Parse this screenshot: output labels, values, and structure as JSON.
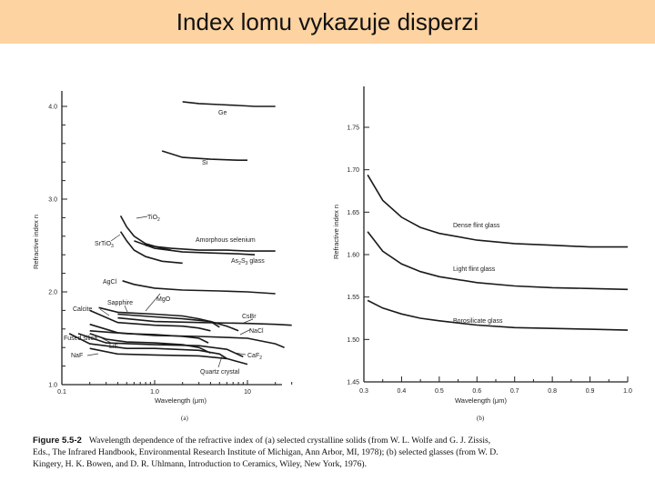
{
  "title": "Index lomu vykazuje disperzi",
  "chart_data": [
    {
      "panel_label": "(a)",
      "type": "line",
      "xlabel": "Wavelength (μm)",
      "ylabel": "Refractive index n",
      "xscale": "log",
      "xlim": [
        0.1,
        30
      ],
      "ylim": [
        1.0,
        4.0
      ],
      "xticks": [
        "0.1",
        "1.0",
        "10"
      ],
      "yticks": [
        "1.0",
        "2.0",
        "3.0",
        "4.0"
      ],
      "series": [
        {
          "name": "Ge",
          "x": [
            2,
            3,
            5,
            8,
            12,
            20
          ],
          "y": [
            4.05,
            4.03,
            4.02,
            4.01,
            4.0,
            4.0
          ]
        },
        {
          "name": "Si",
          "x": [
            1.2,
            2,
            4,
            8,
            10
          ],
          "y": [
            3.52,
            3.45,
            3.43,
            3.42,
            3.42
          ]
        },
        {
          "name": "TiO2",
          "x": [
            0.43,
            0.5,
            0.6,
            0.8,
            1.2,
            1.5
          ],
          "y": [
            2.82,
            2.7,
            2.6,
            2.52,
            2.47,
            2.45
          ]
        },
        {
          "name": "SrTiO3",
          "x": [
            0.43,
            0.5,
            0.6,
            0.8,
            1.2,
            2
          ],
          "y": [
            2.65,
            2.55,
            2.45,
            2.38,
            2.33,
            2.31
          ]
        },
        {
          "name": "Amorphous selenium",
          "x": [
            0.8,
            1.5,
            3,
            6,
            10,
            20
          ],
          "y": [
            2.5,
            2.47,
            2.45,
            2.45,
            2.44,
            2.44
          ]
        },
        {
          "name": "As2S3 glass",
          "x": [
            0.6,
            1,
            2,
            4,
            8,
            12
          ],
          "y": [
            2.55,
            2.47,
            2.43,
            2.42,
            2.41,
            2.4
          ]
        },
        {
          "name": "AgCl",
          "x": [
            0.45,
            0.6,
            1,
            2,
            5,
            10,
            20
          ],
          "y": [
            2.12,
            2.08,
            2.04,
            2.02,
            2.01,
            2.0,
            1.98
          ]
        },
        {
          "name": "Sapphire",
          "x": [
            0.25,
            0.4,
            1,
            2,
            3,
            4,
            5
          ],
          "y": [
            1.83,
            1.78,
            1.76,
            1.74,
            1.71,
            1.68,
            1.62
          ]
        },
        {
          "name": "MgO",
          "x": [
            0.4,
            1,
            2,
            4,
            6,
            8
          ],
          "y": [
            1.76,
            1.73,
            1.71,
            1.68,
            1.63,
            1.58
          ]
        },
        {
          "name": "CsBr",
          "x": [
            0.4,
            1,
            3,
            10,
            20,
            30
          ],
          "y": [
            1.72,
            1.68,
            1.67,
            1.66,
            1.65,
            1.64
          ]
        },
        {
          "name": "Calcite",
          "x": [
            0.2,
            0.4,
            1,
            2,
            3,
            4
          ],
          "y": [
            1.8,
            1.67,
            1.64,
            1.63,
            1.61,
            1.58
          ]
        },
        {
          "name": "NaCl",
          "x": [
            0.2,
            0.4,
            1,
            3,
            10,
            20,
            25
          ],
          "y": [
            1.65,
            1.56,
            1.53,
            1.52,
            1.5,
            1.44,
            1.4
          ]
        },
        {
          "name": "Fused silica",
          "x": [
            0.2,
            0.3,
            0.5,
            1,
            2,
            3,
            4
          ],
          "y": [
            1.55,
            1.49,
            1.46,
            1.45,
            1.43,
            1.4,
            1.34
          ]
        },
        {
          "name": "LiF",
          "x": [
            0.12,
            0.2,
            0.5,
            1,
            3,
            5,
            6
          ],
          "y": [
            1.55,
            1.44,
            1.39,
            1.39,
            1.37,
            1.33,
            1.28
          ]
        },
        {
          "name": "CaF2",
          "x": [
            0.15,
            0.3,
            1,
            3,
            6,
            9
          ],
          "y": [
            1.55,
            1.45,
            1.43,
            1.42,
            1.38,
            1.3
          ]
        },
        {
          "name": "NaF",
          "x": [
            0.2,
            0.4,
            1,
            3,
            6,
            10
          ],
          "y": [
            1.39,
            1.33,
            1.32,
            1.31,
            1.28,
            1.22
          ]
        },
        {
          "name": "Quartz crystal",
          "x": [
            0.2,
            0.5,
            1,
            2,
            3,
            3.8
          ],
          "y": [
            1.58,
            1.55,
            1.54,
            1.52,
            1.5,
            1.45
          ]
        }
      ],
      "labels": {
        "ge": "Ge",
        "si": "Si",
        "tio2": "TiO",
        "tio2_sub": "2",
        "srtio3": "SrTiO",
        "srtio3_sub": "3",
        "se": "Amorphous selenium",
        "as2s3_a": "As",
        "as2s3_sub1": "2",
        "as2s3_b": "S",
        "as2s3_sub2": "3",
        "as2s3_c": " glass",
        "agcl": "AgCl",
        "sapphire": "Sapphire",
        "mgo": "MgO",
        "calcite": "Calcite",
        "csbr": "CsBr",
        "nacl": "NaCl",
        "fused": "Fused silica",
        "lif": "LiF",
        "naf": "NaF",
        "caf2": "CaF",
        "caf2_sub": "2",
        "quartz": "Quartz crystal"
      }
    },
    {
      "panel_label": "(b)",
      "type": "line",
      "xlabel": "Wavelength (μm)",
      "ylabel": "Refractive index n",
      "xlim": [
        0.3,
        1.0
      ],
      "ylim": [
        1.45,
        1.8
      ],
      "xticks": [
        "0.3",
        "0.4",
        "0.5",
        "0.6",
        "0.7",
        "0.8",
        "0.9",
        "1.0"
      ],
      "yticks": [
        "1.45",
        "1.50",
        "1.55",
        "1.60",
        "1.65",
        "1.70",
        "1.75"
      ],
      "series": [
        {
          "name": "Dense flint glass",
          "x": [
            0.31,
            0.35,
            0.4,
            0.45,
            0.5,
            0.6,
            0.7,
            0.8,
            0.9,
            1.0
          ],
          "y": [
            1.694,
            1.664,
            1.644,
            1.632,
            1.625,
            1.617,
            1.613,
            1.611,
            1.609,
            1.609
          ]
        },
        {
          "name": "Light flint glass",
          "x": [
            0.31,
            0.35,
            0.4,
            0.45,
            0.5,
            0.6,
            0.7,
            0.8,
            0.9,
            1.0
          ],
          "y": [
            1.627,
            1.604,
            1.589,
            1.58,
            1.574,
            1.567,
            1.563,
            1.561,
            1.56,
            1.559
          ]
        },
        {
          "name": "Borosilicate glass",
          "x": [
            0.31,
            0.35,
            0.4,
            0.45,
            0.5,
            0.6,
            0.7,
            0.8,
            0.9,
            1.0
          ],
          "y": [
            1.546,
            1.537,
            1.53,
            1.525,
            1.522,
            1.517,
            1.514,
            1.513,
            1.512,
            1.511
          ]
        }
      ]
    }
  ],
  "caption": {
    "label": "Figure 5.5-2",
    "line1": "Wavelength dependence of the refractive index of (a) selected crystalline solids (from W. L. Wolfe and G. J. Zissis,",
    "line2": "Eds., The Infrared Handbook, Environmental Research Institute of Michigan, Ann Arbor, MI, 1978); (b) selected glasses (from W. D.",
    "line3": "Kingery, H. K. Bowen, and D. R. Uhlmann, Introduction to Ceramics, Wiley, New York, 1976)."
  }
}
